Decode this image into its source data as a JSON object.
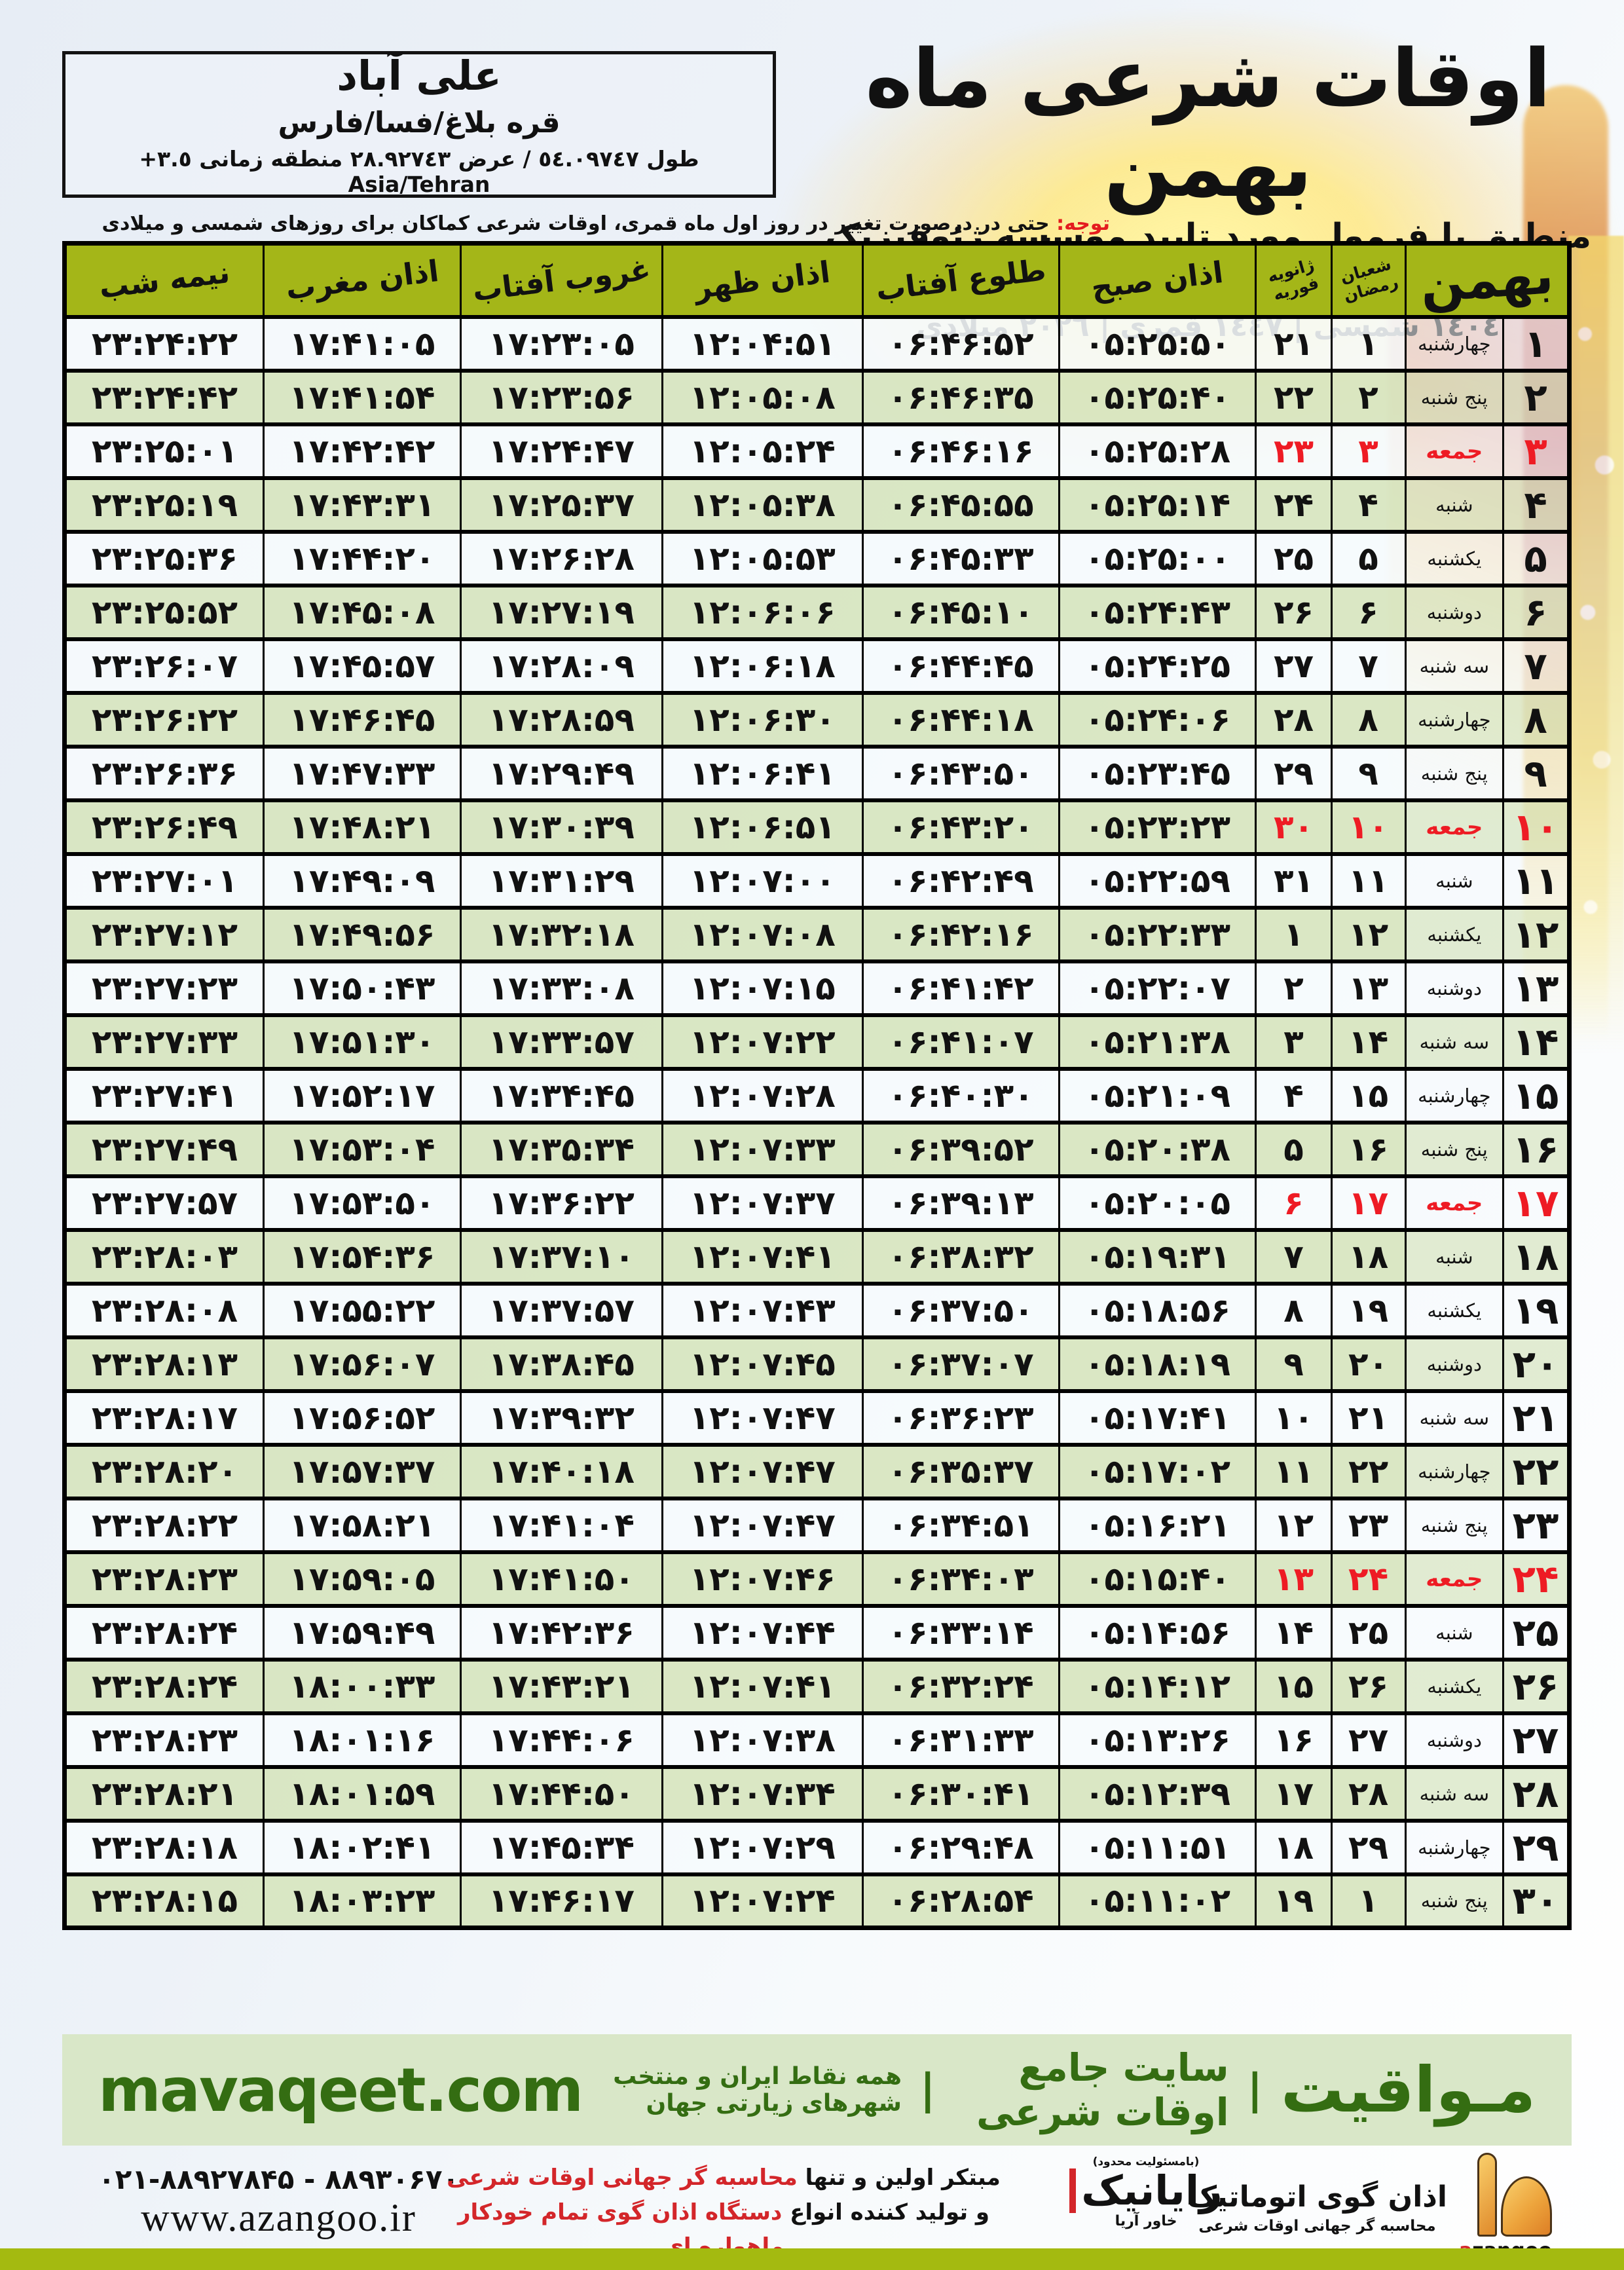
{
  "header": {
    "title": "اوقات شرعی ماه بهمن",
    "subtitle": "منطبق با فرمول مورد تایید موسسه ژئوفیزیک دانشگاه تهران",
    "years_line": "١٤٠٤ شمسی | ١٤٤٧ قمری | ٢٠٢٦ میلادی",
    "city": {
      "name": "علی آباد",
      "region": "قره بلاغ/فسا/فارس",
      "coords": "طول ٥٤.٠٩٧٤٧ / عرض ٢٨.٩٢٧٤٣ منطقه زمانی ٣.٥+ Asia/Tehran"
    },
    "notice_label": "توجه:",
    "notice_text": " حتی در درصورت تغییر در روز اول ماه قمری، اوقات شرعی کماکان برای روزهای شمسی و میلادی معتبر است."
  },
  "table": {
    "month_label": "بهمن",
    "lunar_header": [
      "شعبان",
      "رمضان"
    ],
    "gregorian_header": [
      "ژانویه",
      "فوریه"
    ],
    "time_headers": [
      "اذان صبح",
      "طلوع آفتاب",
      "اذان ظهر",
      "غروب آفتاب",
      "اذان مغرب",
      "نیمه شب"
    ],
    "friday_rows": [
      3,
      10,
      17,
      24
    ],
    "accent_red": "#ee1b24",
    "header_olive": "#a4b618",
    "rows": [
      [
        "۱",
        "چهارشنبه",
        "۱",
        "۲۱",
        "۰۵:۲۵:۵۰",
        "۰۶:۴۶:۵۲",
        "۱۲:۰۴:۵۱",
        "۱۷:۲۳:۰۵",
        "۱۷:۴۱:۰۵",
        "۲۳:۲۴:۲۲"
      ],
      [
        "۲",
        "پنج شنبه",
        "۲",
        "۲۲",
        "۰۵:۲۵:۴۰",
        "۰۶:۴۶:۳۵",
        "۱۲:۰۵:۰۸",
        "۱۷:۲۳:۵۶",
        "۱۷:۴۱:۵۴",
        "۲۳:۲۴:۴۲"
      ],
      [
        "۳",
        "جمعه",
        "۳",
        "۲۳",
        "۰۵:۲۵:۲۸",
        "۰۶:۴۶:۱۶",
        "۱۲:۰۵:۲۴",
        "۱۷:۲۴:۴۷",
        "۱۷:۴۲:۴۲",
        "۲۳:۲۵:۰۱"
      ],
      [
        "۴",
        "شنبه",
        "۴",
        "۲۴",
        "۰۵:۲۵:۱۴",
        "۰۶:۴۵:۵۵",
        "۱۲:۰۵:۳۸",
        "۱۷:۲۵:۳۷",
        "۱۷:۴۳:۳۱",
        "۲۳:۲۵:۱۹"
      ],
      [
        "۵",
        "یکشنبه",
        "۵",
        "۲۵",
        "۰۵:۲۵:۰۰",
        "۰۶:۴۵:۳۳",
        "۱۲:۰۵:۵۳",
        "۱۷:۲۶:۲۸",
        "۱۷:۴۴:۲۰",
        "۲۳:۲۵:۳۶"
      ],
      [
        "۶",
        "دوشنبه",
        "۶",
        "۲۶",
        "۰۵:۲۴:۴۳",
        "۰۶:۴۵:۱۰",
        "۱۲:۰۶:۰۶",
        "۱۷:۲۷:۱۹",
        "۱۷:۴۵:۰۸",
        "۲۳:۲۵:۵۲"
      ],
      [
        "۷",
        "سه شنبه",
        "۷",
        "۲۷",
        "۰۵:۲۴:۲۵",
        "۰۶:۴۴:۴۵",
        "۱۲:۰۶:۱۸",
        "۱۷:۲۸:۰۹",
        "۱۷:۴۵:۵۷",
        "۲۳:۲۶:۰۷"
      ],
      [
        "۸",
        "چهارشنبه",
        "۸",
        "۲۸",
        "۰۵:۲۴:۰۶",
        "۰۶:۴۴:۱۸",
        "۱۲:۰۶:۳۰",
        "۱۷:۲۸:۵۹",
        "۱۷:۴۶:۴۵",
        "۲۳:۲۶:۲۲"
      ],
      [
        "۹",
        "پنج شنبه",
        "۹",
        "۲۹",
        "۰۵:۲۳:۴۵",
        "۰۶:۴۳:۵۰",
        "۱۲:۰۶:۴۱",
        "۱۷:۲۹:۴۹",
        "۱۷:۴۷:۳۳",
        "۲۳:۲۶:۳۶"
      ],
      [
        "۱۰",
        "جمعه",
        "۱۰",
        "۳۰",
        "۰۵:۲۳:۲۳",
        "۰۶:۴۳:۲۰",
        "۱۲:۰۶:۵۱",
        "۱۷:۳۰:۳۹",
        "۱۷:۴۸:۲۱",
        "۲۳:۲۶:۴۹"
      ],
      [
        "۱۱",
        "شنبه",
        "۱۱",
        "۳۱",
        "۰۵:۲۲:۵۹",
        "۰۶:۴۲:۴۹",
        "۱۲:۰۷:۰۰",
        "۱۷:۳۱:۲۹",
        "۱۷:۴۹:۰۹",
        "۲۳:۲۷:۰۱"
      ],
      [
        "۱۲",
        "یکشنبه",
        "۱۲",
        "۱",
        "۰۵:۲۲:۳۳",
        "۰۶:۴۲:۱۶",
        "۱۲:۰۷:۰۸",
        "۱۷:۳۲:۱۸",
        "۱۷:۴۹:۵۶",
        "۲۳:۲۷:۱۲"
      ],
      [
        "۱۳",
        "دوشنبه",
        "۱۳",
        "۲",
        "۰۵:۲۲:۰۷",
        "۰۶:۴۱:۴۲",
        "۱۲:۰۷:۱۵",
        "۱۷:۳۳:۰۸",
        "۱۷:۵۰:۴۳",
        "۲۳:۲۷:۲۳"
      ],
      [
        "۱۴",
        "سه شنبه",
        "۱۴",
        "۳",
        "۰۵:۲۱:۳۸",
        "۰۶:۴۱:۰۷",
        "۱۲:۰۷:۲۲",
        "۱۷:۳۳:۵۷",
        "۱۷:۵۱:۳۰",
        "۲۳:۲۷:۳۳"
      ],
      [
        "۱۵",
        "چهارشنبه",
        "۱۵",
        "۴",
        "۰۵:۲۱:۰۹",
        "۰۶:۴۰:۳۰",
        "۱۲:۰۷:۲۸",
        "۱۷:۳۴:۴۵",
        "۱۷:۵۲:۱۷",
        "۲۳:۲۷:۴۱"
      ],
      [
        "۱۶",
        "پنج شنبه",
        "۱۶",
        "۵",
        "۰۵:۲۰:۳۸",
        "۰۶:۳۹:۵۲",
        "۱۲:۰۷:۳۳",
        "۱۷:۳۵:۳۴",
        "۱۷:۵۳:۰۴",
        "۲۳:۲۷:۴۹"
      ],
      [
        "۱۷",
        "جمعه",
        "۱۷",
        "۶",
        "۰۵:۲۰:۰۵",
        "۰۶:۳۹:۱۳",
        "۱۲:۰۷:۳۷",
        "۱۷:۳۶:۲۲",
        "۱۷:۵۳:۵۰",
        "۲۳:۲۷:۵۷"
      ],
      [
        "۱۸",
        "شنبه",
        "۱۸",
        "۷",
        "۰۵:۱۹:۳۱",
        "۰۶:۳۸:۳۲",
        "۱۲:۰۷:۴۱",
        "۱۷:۳۷:۱۰",
        "۱۷:۵۴:۳۶",
        "۲۳:۲۸:۰۳"
      ],
      [
        "۱۹",
        "یکشنبه",
        "۱۹",
        "۸",
        "۰۵:۱۸:۵۶",
        "۰۶:۳۷:۵۰",
        "۱۲:۰۷:۴۳",
        "۱۷:۳۷:۵۷",
        "۱۷:۵۵:۲۲",
        "۲۳:۲۸:۰۸"
      ],
      [
        "۲۰",
        "دوشنبه",
        "۲۰",
        "۹",
        "۰۵:۱۸:۱۹",
        "۰۶:۳۷:۰۷",
        "۱۲:۰۷:۴۵",
        "۱۷:۳۸:۴۵",
        "۱۷:۵۶:۰۷",
        "۲۳:۲۸:۱۳"
      ],
      [
        "۲۱",
        "سه شنبه",
        "۲۱",
        "۱۰",
        "۰۵:۱۷:۴۱",
        "۰۶:۳۶:۲۳",
        "۱۲:۰۷:۴۷",
        "۱۷:۳۹:۳۲",
        "۱۷:۵۶:۵۲",
        "۲۳:۲۸:۱۷"
      ],
      [
        "۲۲",
        "چهارشنبه",
        "۲۲",
        "۱۱",
        "۰۵:۱۷:۰۲",
        "۰۶:۳۵:۳۷",
        "۱۲:۰۷:۴۷",
        "۱۷:۴۰:۱۸",
        "۱۷:۵۷:۳۷",
        "۲۳:۲۸:۲۰"
      ],
      [
        "۲۳",
        "پنج شنبه",
        "۲۳",
        "۱۲",
        "۰۵:۱۶:۲۱",
        "۰۶:۳۴:۵۱",
        "۱۲:۰۷:۴۷",
        "۱۷:۴۱:۰۴",
        "۱۷:۵۸:۲۱",
        "۲۳:۲۸:۲۲"
      ],
      [
        "۲۴",
        "جمعه",
        "۲۴",
        "۱۳",
        "۰۵:۱۵:۴۰",
        "۰۶:۳۴:۰۳",
        "۱۲:۰۷:۴۶",
        "۱۷:۴۱:۵۰",
        "۱۷:۵۹:۰۵",
        "۲۳:۲۸:۲۳"
      ],
      [
        "۲۵",
        "شنبه",
        "۲۵",
        "۱۴",
        "۰۵:۱۴:۵۶",
        "۰۶:۳۳:۱۴",
        "۱۲:۰۷:۴۴",
        "۱۷:۴۲:۳۶",
        "۱۷:۵۹:۴۹",
        "۲۳:۲۸:۲۴"
      ],
      [
        "۲۶",
        "یکشنبه",
        "۲۶",
        "۱۵",
        "۰۵:۱۴:۱۲",
        "۰۶:۳۲:۲۴",
        "۱۲:۰۷:۴۱",
        "۱۷:۴۳:۲۱",
        "۱۸:۰۰:۳۳",
        "۲۳:۲۸:۲۴"
      ],
      [
        "۲۷",
        "دوشنبه",
        "۲۷",
        "۱۶",
        "۰۵:۱۳:۲۶",
        "۰۶:۳۱:۳۳",
        "۱۲:۰۷:۳۸",
        "۱۷:۴۴:۰۶",
        "۱۸:۰۱:۱۶",
        "۲۳:۲۸:۲۳"
      ],
      [
        "۲۸",
        "سه شنبه",
        "۲۸",
        "۱۷",
        "۰۵:۱۲:۳۹",
        "۰۶:۳۰:۴۱",
        "۱۲:۰۷:۳۴",
        "۱۷:۴۴:۵۰",
        "۱۸:۰۱:۵۹",
        "۲۳:۲۸:۲۱"
      ],
      [
        "۲۹",
        "چهارشنبه",
        "۲۹",
        "۱۸",
        "۰۵:۱۱:۵۱",
        "۰۶:۲۹:۴۸",
        "۱۲:۰۷:۲۹",
        "۱۷:۴۵:۳۴",
        "۱۸:۰۲:۴۱",
        "۲۳:۲۸:۱۸"
      ],
      [
        "۳۰",
        "پنج شنبه",
        "۱",
        "۱۹",
        "۰۵:۱۱:۰۲",
        "۰۶:۲۸:۵۴",
        "۱۲:۰۷:۲۴",
        "۱۷:۴۶:۱۷",
        "۱۸:۰۳:۲۳",
        "۲۳:۲۸:۱۵"
      ]
    ]
  },
  "mavaqeet_bar": {
    "brand": "مـواقیت",
    "separator": "|",
    "tagline1": "سایت جامع اوقات شرعی",
    "tagline2": "همه نقاط ایران و منتخب شهرهای زیارتی جهان",
    "domain": "mavaqeet.com",
    "text_green": "#346d12",
    "bg_green": "#d9e7c8"
  },
  "footer": {
    "phone": "۰۲۱-۸۸۹۲۷۸۴۵ - ۸۸۹۳۰۶۷۰",
    "website": "www.azangoo.ir",
    "ad_line1_black": "مبتکر اولین و تنها ",
    "ad_line1_red": "محاسبه گر جهانی اوقات شرعی",
    "ad_line2_black": "و تولید کننده انواع ",
    "ad_line2_red": "دستگاه اذان گوی تمام خودکار ماهواره ای",
    "rayanik_note": "(بامسئولیت محدود)",
    "rayanik_name": "رایانیک",
    "rayanik_sub": "خاور آریا",
    "azangoo_title": "اذان گوی اتوماتیک",
    "azangoo_sub": "محاسبه گر جهانی اوقات شرعی",
    "azangoo_latin_a": "a",
    "azangoo_latin_rest": "zangoo",
    "bottom_bar_color": "#a4ba10"
  }
}
